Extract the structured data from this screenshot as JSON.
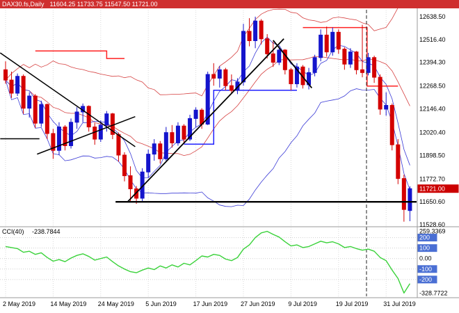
{
  "header": {
    "symbol": "DAX30.fs,Daily",
    "ohlc": "11604.25 11733.75 11547.50 11721.00",
    "bg": "#cf2f2f"
  },
  "chart_data": {
    "type": "candlestick",
    "title": "DAX30.fs Daily chart with CCI(40) indicator",
    "price_axis": {
      "labels": [
        "12638.50",
        "12516.40",
        "12394.30",
        "12268.50",
        "12146.40",
        "12020.40",
        "11898.50",
        "11772.70",
        "11650.60",
        "11528.60"
      ],
      "current": "11721.00",
      "current_badge_color": "#cc0000",
      "ylim": [
        11529,
        12675
      ]
    },
    "x_axis": {
      "labels": [
        {
          "text": "2 May 2019",
          "i": 0
        },
        {
          "text": "14 May 2019",
          "i": 8
        },
        {
          "text": "24 May 2019",
          "i": 16
        },
        {
          "text": "5 Jun 2019",
          "i": 24
        },
        {
          "text": "17 Jun 2019",
          "i": 32
        },
        {
          "text": "27 Jun 2019",
          "i": 40
        },
        {
          "text": "9 Jul 2019",
          "i": 48
        },
        {
          "text": "19 Jul 2019",
          "i": 56
        },
        {
          "text": "31 Jul 2019",
          "i": 64
        }
      ]
    },
    "colors": {
      "up": "#1414cc",
      "down": "#d40000",
      "ma_fast": "#3a3ad6",
      "ma_slow": "#d64040",
      "trend": "#000000",
      "grid": "#d9d9d9"
    },
    "candles": [
      [
        12355,
        12400,
        12280,
        12300
      ],
      [
        12300,
        12345,
        12205,
        12230
      ],
      [
        12230,
        12335,
        12215,
        12320
      ],
      [
        12320,
        12330,
        12120,
        12150
      ],
      [
        12150,
        12235,
        12100,
        12215
      ],
      [
        12215,
        12225,
        12045,
        12070
      ],
      [
        12070,
        12190,
        12050,
        12170
      ],
      [
        12170,
        12175,
        11985,
        12015
      ],
      [
        12015,
        12040,
        11880,
        11925
      ],
      [
        11925,
        12075,
        11900,
        12050
      ],
      [
        12050,
        12060,
        11925,
        11950
      ],
      [
        11950,
        12095,
        11935,
        12075
      ],
      [
        12075,
        12155,
        12040,
        12130
      ],
      [
        12130,
        12175,
        12075,
        12160
      ],
      [
        12160,
        12165,
        12025,
        12050
      ],
      [
        12050,
        12070,
        11955,
        11985
      ],
      [
        11985,
        12085,
        11970,
        12060
      ],
      [
        12060,
        12135,
        12025,
        12120
      ],
      [
        12120,
        12125,
        11985,
        12010
      ],
      [
        12010,
        12020,
        11865,
        11900
      ],
      [
        11900,
        11915,
        11760,
        11790
      ],
      [
        11790,
        11840,
        11655,
        11720
      ],
      [
        11720,
        11735,
        11640,
        11670
      ],
      [
        11670,
        11830,
        11650,
        11810
      ],
      [
        11810,
        11930,
        11780,
        11905
      ],
      [
        11905,
        11985,
        11870,
        11960
      ],
      [
        11960,
        11975,
        11855,
        11880
      ],
      [
        11880,
        12050,
        11870,
        12020
      ],
      [
        12020,
        12060,
        11940,
        11965
      ],
      [
        11965,
        12075,
        11950,
        12055
      ],
      [
        12055,
        12065,
        11960,
        11985
      ],
      [
        11985,
        12115,
        11975,
        12095
      ],
      [
        12095,
        12155,
        12050,
        12140
      ],
      [
        12140,
        12150,
        12040,
        12065
      ],
      [
        12065,
        12345,
        12060,
        12330
      ],
      [
        12330,
        12390,
        12270,
        12310
      ],
      [
        12310,
        12375,
        12260,
        12355
      ],
      [
        12355,
        12365,
        12245,
        12270
      ],
      [
        12270,
        12330,
        12230,
        12245
      ],
      [
        12245,
        12310,
        12225,
        12290
      ],
      [
        12290,
        12600,
        12270,
        12560
      ],
      [
        12560,
        12630,
        12480,
        12510
      ],
      [
        12510,
        12638,
        12470,
        12615
      ],
      [
        12615,
        12625,
        12490,
        12520
      ],
      [
        12520,
        12545,
        12415,
        12440
      ],
      [
        12440,
        12505,
        12370,
        12395
      ],
      [
        12395,
        12480,
        12380,
        12460
      ],
      [
        12460,
        12465,
        12330,
        12355
      ],
      [
        12355,
        12365,
        12245,
        12280
      ],
      [
        12280,
        12390,
        12260,
        12370
      ],
      [
        12370,
        12380,
        12255,
        12275
      ],
      [
        12275,
        12365,
        12250,
        12340
      ],
      [
        12340,
        12435,
        12320,
        12420
      ],
      [
        12420,
        12570,
        12400,
        12540
      ],
      [
        12540,
        12585,
        12425,
        12450
      ],
      [
        12450,
        12580,
        12430,
        12555
      ],
      [
        12555,
        12570,
        12440,
        12465
      ],
      [
        12465,
        12475,
        12355,
        12385
      ],
      [
        12385,
        12470,
        12365,
        12450
      ],
      [
        12450,
        12455,
        12330,
        12355
      ],
      [
        12355,
        12595,
        12315,
        12340
      ],
      [
        12340,
        12445,
        12325,
        12420
      ],
      [
        12420,
        12430,
        12285,
        12315
      ],
      [
        12315,
        12330,
        12115,
        12145
      ],
      [
        12145,
        12235,
        12110,
        12165
      ],
      [
        12165,
        12175,
        11925,
        11955
      ],
      [
        11955,
        11985,
        11745,
        11775
      ],
      [
        11775,
        11795,
        11545,
        11610
      ],
      [
        11604.25,
        11733.75,
        11547.5,
        11721
      ]
    ],
    "overlays": {
      "steps": [
        {
          "color": "#ff2020",
          "points": [
            [
              5,
              12455
            ],
            [
              17,
              12455
            ],
            [
              17,
              12415
            ],
            [
              20,
              12415
            ]
          ]
        },
        {
          "color": "#ff2020",
          "points": [
            [
              50,
              12580
            ],
            [
              60.8,
              12580
            ],
            [
              60.8,
              12268
            ],
            [
              66,
              12268
            ]
          ]
        },
        {
          "color": "#2020ff",
          "points": [
            [
              30,
              11958
            ],
            [
              35,
              11958
            ],
            [
              35,
              12246
            ],
            [
              49,
              12246
            ]
          ]
        }
      ],
      "trendlines": [
        {
          "from": [
            -0.9,
            11987
          ],
          "to": [
            5.7,
            11987
          ],
          "w": 1.5
        },
        {
          "from": [
            -0.9,
            12445
          ],
          "to": [
            21.8,
            11945
          ],
          "w": 1.5
        },
        {
          "from": [
            5.3,
            11905
          ],
          "to": [
            21.8,
            12105
          ],
          "w": 1.5
        },
        {
          "from": [
            20.5,
            11650
          ],
          "to": [
            46.8,
            12520
          ],
          "w": 1.8
        },
        {
          "from": [
            45,
            12512
          ],
          "to": [
            51.5,
            12258
          ],
          "w": 1.8
        }
      ],
      "hline": {
        "price": 11650.6,
        "from": 18.5,
        "to": 69.5
      },
      "vline": {
        "index": 60.7
      }
    },
    "cci": {
      "label": "CCI(40)",
      "value": "-238.7844",
      "color": "#3ad23a",
      "badge_color": "#4a6fd4",
      "levels": [
        200,
        100,
        0,
        -100,
        -200
      ],
      "max_label": "259.3369",
      "min_label": "-328.7722",
      "ylim": [
        -360,
        290
      ],
      "values": [
        115,
        105,
        95,
        60,
        70,
        40,
        55,
        10,
        -25,
        -10,
        -30,
        5,
        30,
        45,
        20,
        -15,
        0,
        15,
        -30,
        -70,
        -100,
        -125,
        -135,
        -110,
        -90,
        -105,
        -70,
        -90,
        -60,
        -80,
        -45,
        -60,
        -20,
        25,
        15,
        40,
        30,
        -5,
        -20,
        10,
        90,
        130,
        200,
        245,
        259.34,
        230,
        205,
        160,
        120,
        130,
        105,
        115,
        140,
        165,
        150,
        160,
        140,
        105,
        115,
        95,
        80,
        90,
        70,
        10,
        -20,
        -110,
        -190,
        -328.77,
        -238.78
      ]
    }
  }
}
